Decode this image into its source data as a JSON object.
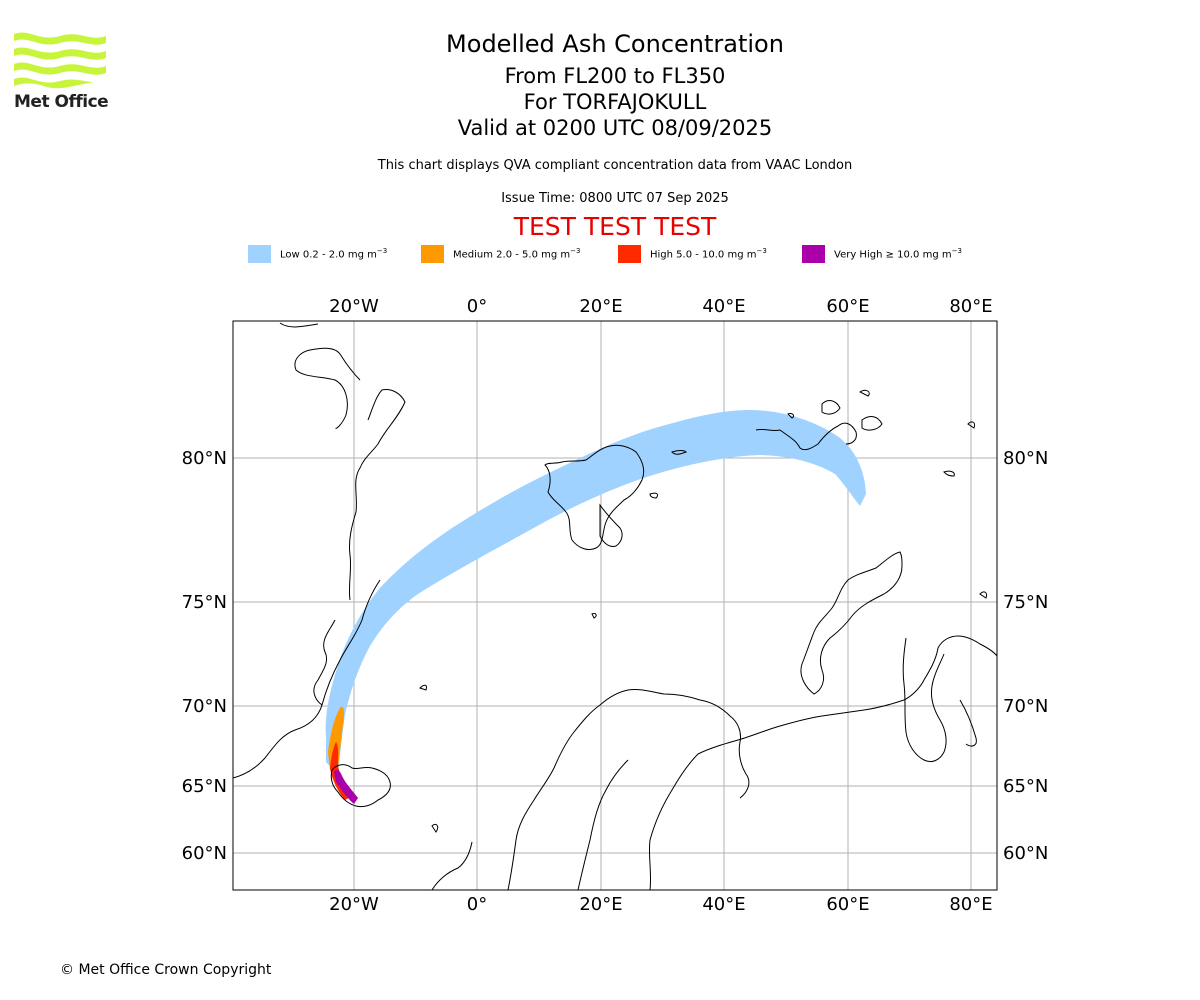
{
  "logo": {
    "text": "Met Office",
    "color": "#c8f53c"
  },
  "header": {
    "title": "Modelled Ash Concentration",
    "levels": "From FL200 to FL350",
    "volcano": "For TORFAJOKULL",
    "valid": "Valid at 0200 UTC 08/09/2025",
    "info": "This chart displays QVA compliant concentration data from VAAC London",
    "issue_time": "Issue Time: 0800 UTC 07 Sep 2025",
    "test_banner": "TEST TEST TEST"
  },
  "legend": [
    {
      "label": "Low 0.2 - 2.0 mg m",
      "sup": "−3",
      "color": "#a0d2ff"
    },
    {
      "label": "Medium 2.0 - 5.0 mg m",
      "sup": "−3",
      "color": "#ff9900"
    },
    {
      "label": "High 5.0 - 10.0 mg m",
      "sup": "−3",
      "color": "#ff2a00"
    },
    {
      "label": "Very High  ≥  10.0 mg m",
      "sup": "−3",
      "color": "#aa00aa"
    }
  ],
  "map": {
    "lon_ticks": [
      "20°W",
      "0°",
      "20°E",
      "40°E",
      "60°E",
      "80°E"
    ],
    "lat_ticks": [
      "80°N",
      "75°N",
      "70°N",
      "65°N",
      "60°N"
    ],
    "gridline_color": "#b0b0b0"
  },
  "footer": {
    "copyright": "© Met Office Crown Copyright"
  }
}
